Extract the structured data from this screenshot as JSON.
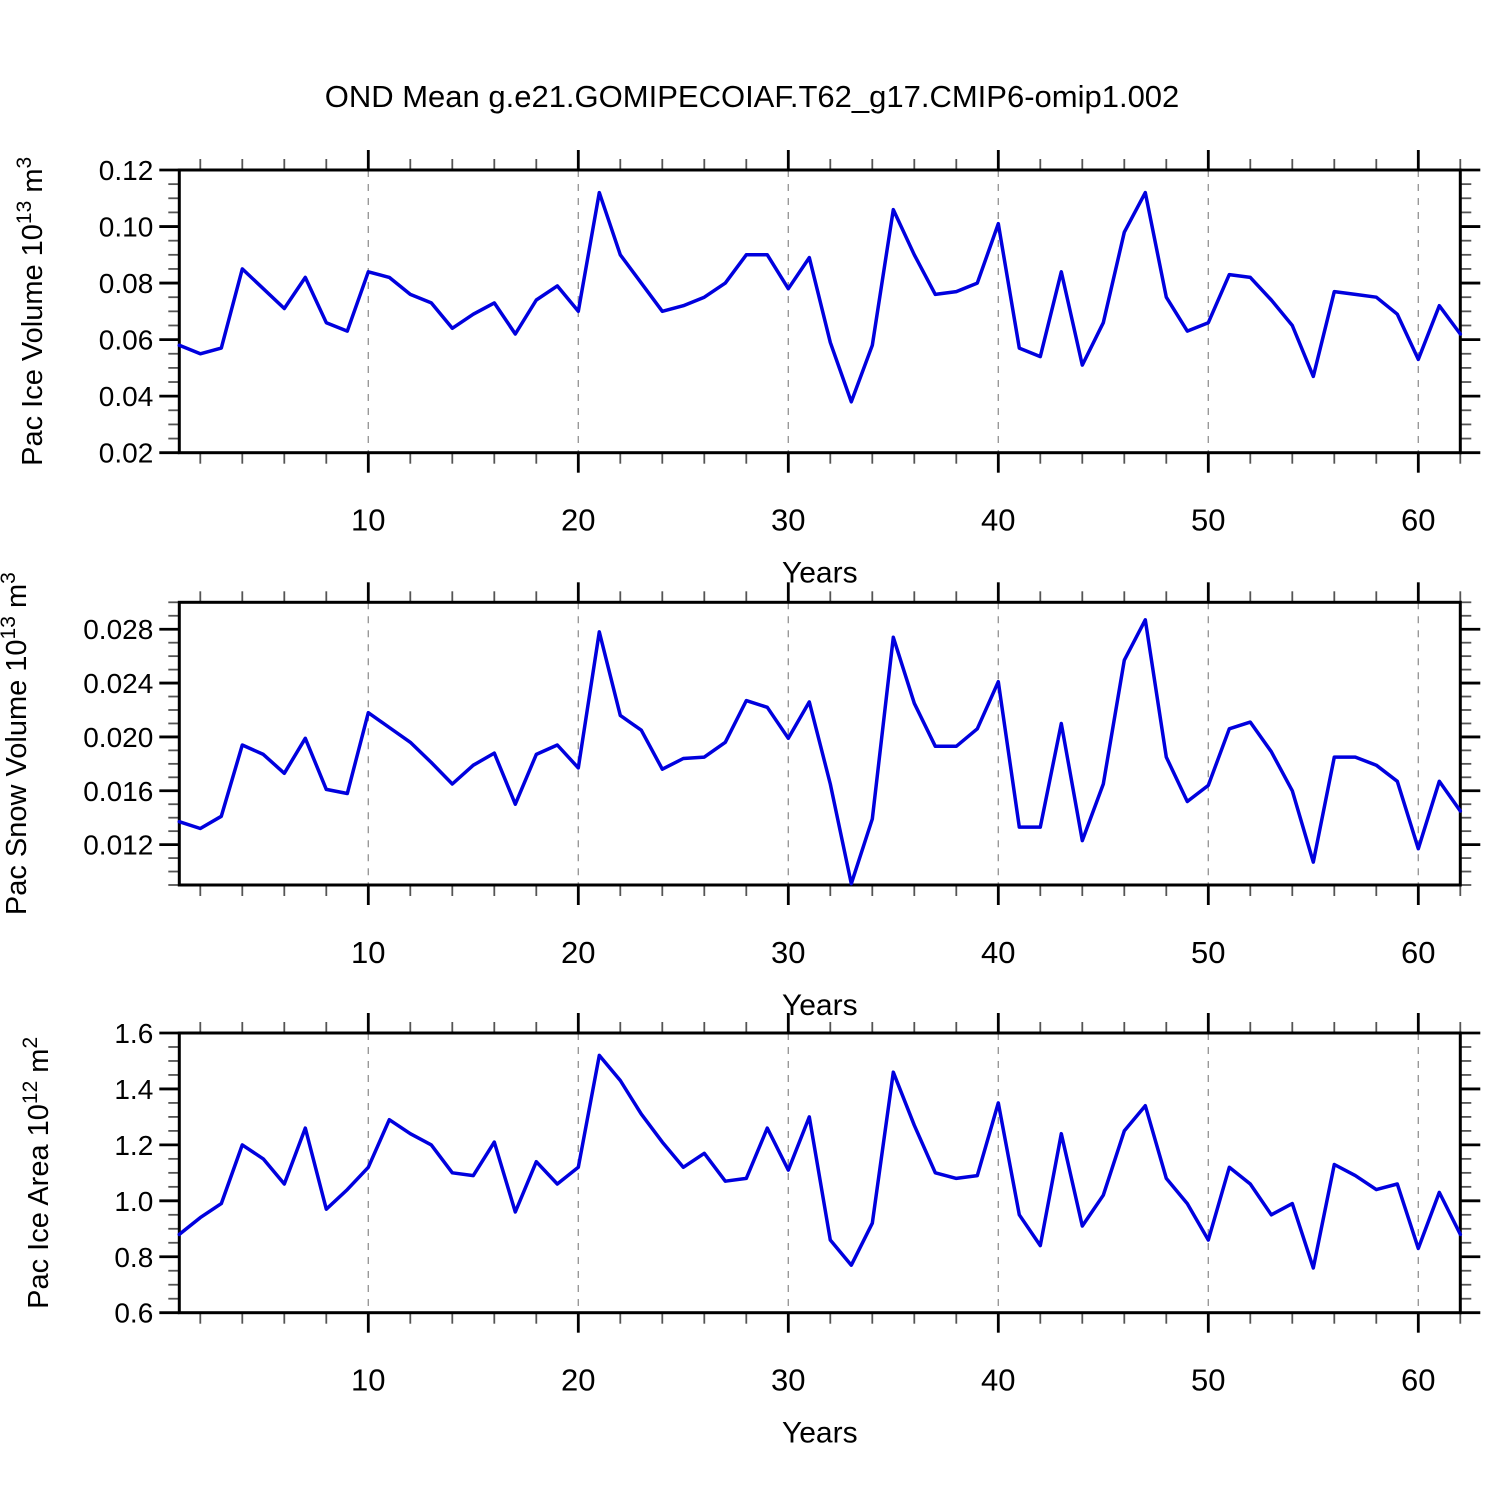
{
  "title": "OND Mean g.e21.GOMIPECOIAF.T62_g17.CMIP6-omip1.002",
  "colors": {
    "line": "#0000DE",
    "frame": "#000000",
    "grid": "#999999",
    "major_tick": "#000000",
    "minor_tick": "#555555",
    "background": "#FFFFFF"
  },
  "x_axis": {
    "label": "Years",
    "min": 1,
    "max": 62,
    "major_ticks": [
      10,
      20,
      30,
      40,
      50,
      60
    ],
    "minor_step": 2,
    "dashed_gridlines_at_major": true
  },
  "chart_data": [
    {
      "type": "line",
      "name": "pac-ice-volume",
      "ylabel": "Pac Ice Volume 10^13 m^3",
      "xlabel": "Years",
      "ylim": [
        0.02,
        0.12
      ],
      "yticks": [
        0.02,
        0.04,
        0.06,
        0.08,
        0.1,
        0.12
      ],
      "ytick_labels": [
        "0.02",
        "0.04",
        "0.06",
        "0.08",
        "0.10",
        "0.12"
      ],
      "y_minor_step": 0.005,
      "x_start": 1,
      "x_end": 62,
      "values": [
        0.058,
        0.055,
        0.057,
        0.085,
        0.078,
        0.071,
        0.082,
        0.066,
        0.063,
        0.084,
        0.082,
        0.076,
        0.073,
        0.064,
        0.069,
        0.073,
        0.062,
        0.074,
        0.079,
        0.07,
        0.112,
        0.09,
        0.08,
        0.07,
        0.072,
        0.075,
        0.08,
        0.09,
        0.09,
        0.078,
        0.089,
        0.059,
        0.038,
        0.058,
        0.106,
        0.09,
        0.076,
        0.077,
        0.08,
        0.101,
        0.057,
        0.054,
        0.084,
        0.051,
        0.066,
        0.098,
        0.112,
        0.075,
        0.063,
        0.066,
        0.083,
        0.082,
        0.074,
        0.065,
        0.047,
        0.077,
        0.076,
        0.075,
        0.069,
        0.053,
        0.072,
        0.062
      ]
    },
    {
      "type": "line",
      "name": "pac-snow-volume",
      "ylabel": "Pac Snow Volume 10^13 m^3",
      "xlabel": "Years",
      "ylim": [
        0.009,
        0.03
      ],
      "yticks": [
        0.012,
        0.016,
        0.02,
        0.024,
        0.028
      ],
      "ytick_labels": [
        "0.012",
        "0.016",
        "0.020",
        "0.024",
        "0.028"
      ],
      "y_minor_step": 0.001,
      "x_start": 1,
      "x_end": 62,
      "values": [
        0.0137,
        0.0132,
        0.0141,
        0.0194,
        0.0187,
        0.0173,
        0.0199,
        0.0161,
        0.0158,
        0.0218,
        0.0207,
        0.0196,
        0.0181,
        0.0165,
        0.0179,
        0.0188,
        0.015,
        0.0187,
        0.0194,
        0.0177,
        0.0278,
        0.0216,
        0.0205,
        0.0176,
        0.0184,
        0.0185,
        0.0196,
        0.0227,
        0.0222,
        0.0199,
        0.0226,
        0.0165,
        0.0091,
        0.0139,
        0.0274,
        0.0225,
        0.0193,
        0.0193,
        0.0206,
        0.0241,
        0.0133,
        0.0133,
        0.021,
        0.0123,
        0.0165,
        0.0257,
        0.0287,
        0.0185,
        0.0152,
        0.0164,
        0.0206,
        0.0211,
        0.0189,
        0.016,
        0.0107,
        0.0185,
        0.0185,
        0.0179,
        0.0167,
        0.0117,
        0.0167,
        0.0145
      ]
    },
    {
      "type": "line",
      "name": "pac-ice-area",
      "ylabel": "Pac Ice Area 10^12 m^2",
      "xlabel": "Years",
      "ylim": [
        0.6,
        1.6
      ],
      "yticks": [
        0.6,
        0.8,
        1.0,
        1.2,
        1.4,
        1.6
      ],
      "ytick_labels": [
        "0.6",
        "0.8",
        "1.0",
        "1.2",
        "1.4",
        "1.6"
      ],
      "y_minor_step": 0.05,
      "x_start": 1,
      "x_end": 62,
      "values": [
        0.88,
        0.94,
        0.99,
        1.2,
        1.15,
        1.06,
        1.26,
        0.97,
        1.04,
        1.12,
        1.29,
        1.24,
        1.2,
        1.1,
        1.09,
        1.21,
        0.96,
        1.14,
        1.06,
        1.12,
        1.52,
        1.43,
        1.31,
        1.21,
        1.12,
        1.17,
        1.07,
        1.08,
        1.26,
        1.11,
        1.3,
        0.86,
        0.77,
        0.92,
        1.46,
        1.27,
        1.1,
        1.08,
        1.09,
        1.35,
        0.95,
        0.84,
        1.24,
        0.91,
        1.02,
        1.25,
        1.34,
        1.08,
        0.99,
        0.86,
        1.12,
        1.06,
        0.95,
        0.99,
        0.76,
        1.13,
        1.09,
        1.04,
        1.06,
        0.83,
        1.03,
        0.88
      ]
    }
  ]
}
